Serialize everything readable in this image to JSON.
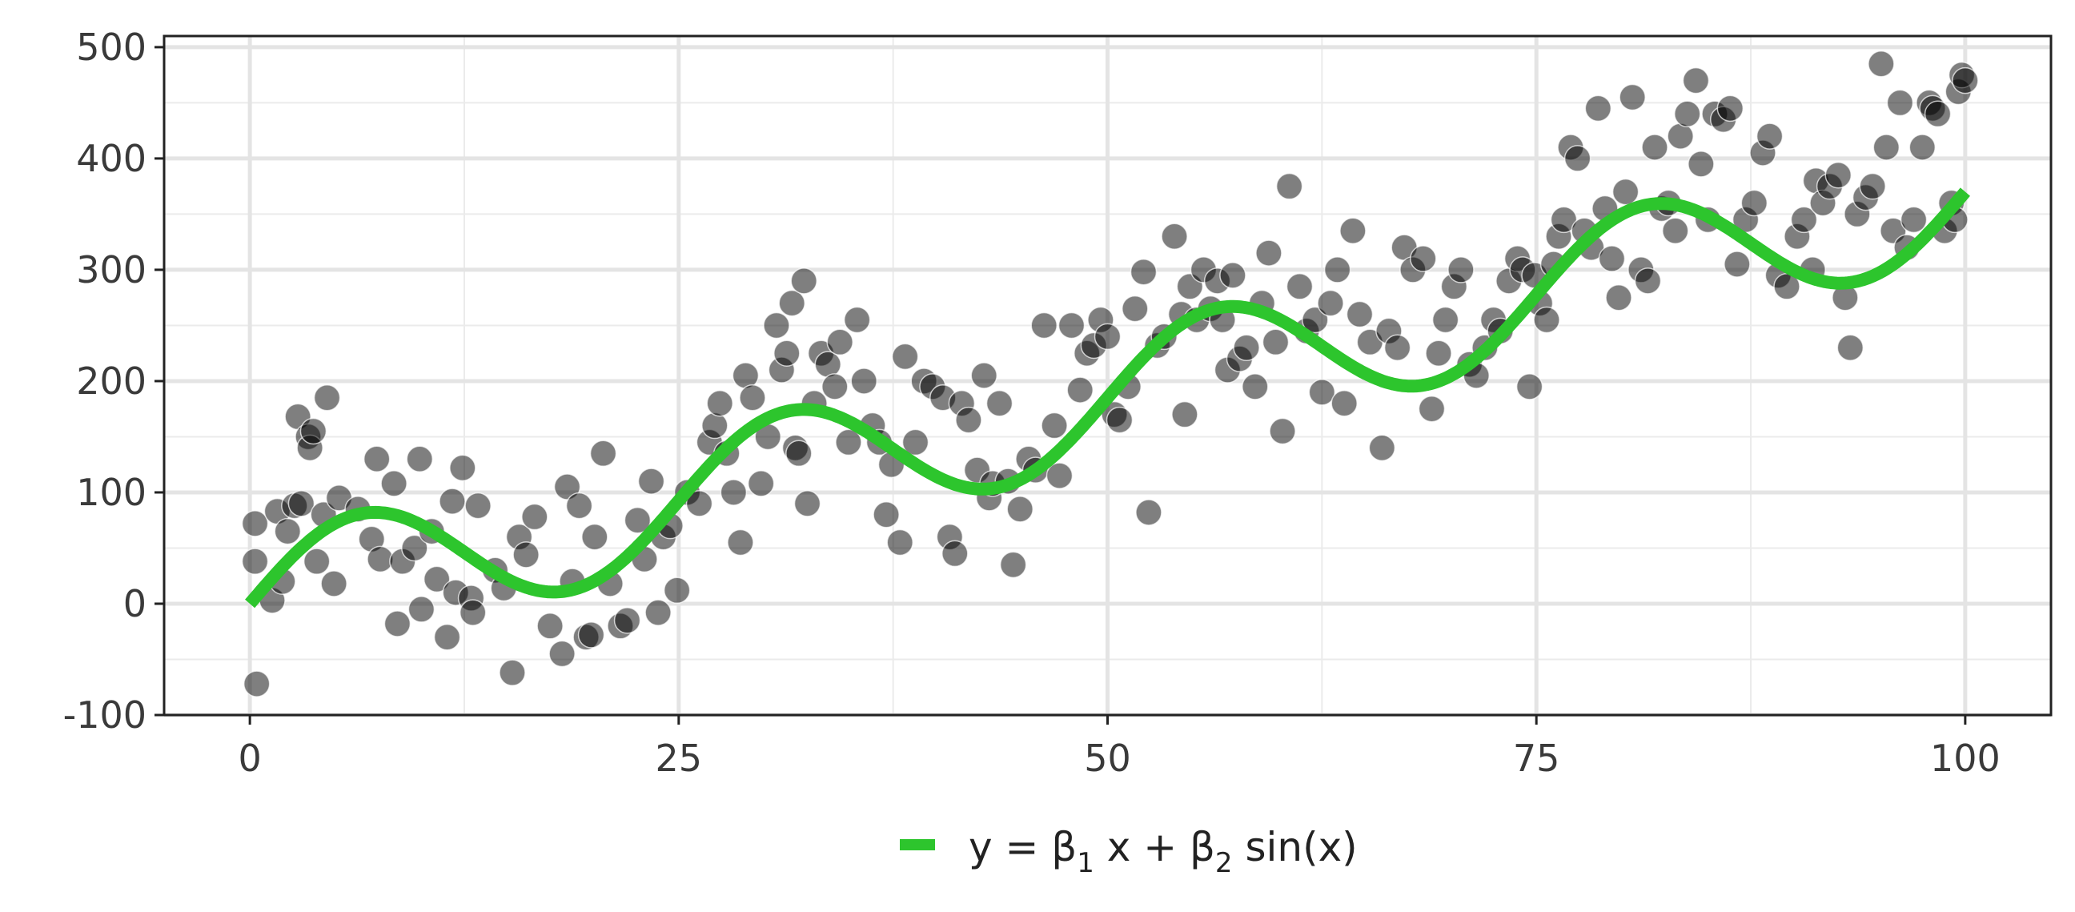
{
  "chart_data": {
    "type": "scatter",
    "title": "",
    "xlabel": "",
    "ylabel": "",
    "xlim": [
      -5,
      105
    ],
    "ylim": [
      -100,
      510
    ],
    "x_ticks": [
      0,
      25,
      50,
      75,
      100
    ],
    "y_ticks": [
      -100,
      0,
      100,
      200,
      300,
      400,
      500
    ],
    "x_tick_labels": [
      "0",
      "25",
      "50",
      "75",
      "100"
    ],
    "y_tick_labels": [
      "-100",
      "0",
      "100",
      "200",
      "300",
      "400",
      "500"
    ],
    "grid": true,
    "legend_position": "bottom",
    "series": [
      {
        "kind": "points",
        "color": "#000000",
        "opacity": 0.5,
        "points": [
          [
            0.3,
            38
          ],
          [
            0.3,
            72
          ],
          [
            0.4,
            -72
          ],
          [
            1.3,
            3
          ],
          [
            1.6,
            83
          ],
          [
            1.9,
            20
          ],
          [
            2.2,
            65
          ],
          [
            2.6,
            88
          ],
          [
            2.8,
            168
          ],
          [
            3.0,
            90
          ],
          [
            3.4,
            150
          ],
          [
            3.5,
            140
          ],
          [
            3.7,
            155
          ],
          [
            3.9,
            38
          ],
          [
            4.3,
            80
          ],
          [
            4.5,
            185
          ],
          [
            4.9,
            18
          ],
          [
            5.2,
            95
          ],
          [
            6.3,
            85
          ],
          [
            7.1,
            58
          ],
          [
            7.4,
            130
          ],
          [
            7.6,
            40
          ],
          [
            8.4,
            108
          ],
          [
            8.6,
            -18
          ],
          [
            8.9,
            38
          ],
          [
            9.6,
            50
          ],
          [
            9.9,
            130
          ],
          [
            10.0,
            -5
          ],
          [
            10.6,
            65
          ],
          [
            10.9,
            22
          ],
          [
            11.5,
            -30
          ],
          [
            11.8,
            92
          ],
          [
            12.0,
            10
          ],
          [
            12.4,
            122
          ],
          [
            12.9,
            5
          ],
          [
            13.0,
            -8
          ],
          [
            13.3,
            88
          ],
          [
            14.3,
            30
          ],
          [
            14.8,
            14
          ],
          [
            15.3,
            -62
          ],
          [
            15.7,
            60
          ],
          [
            16.1,
            44
          ],
          [
            16.6,
            78
          ],
          [
            17.5,
            -20
          ],
          [
            18.2,
            -45
          ],
          [
            18.5,
            105
          ],
          [
            18.8,
            20
          ],
          [
            19.2,
            88
          ],
          [
            19.6,
            -30
          ],
          [
            19.9,
            -28
          ],
          [
            20.1,
            60
          ],
          [
            20.6,
            135
          ],
          [
            21.0,
            18
          ],
          [
            21.6,
            -20
          ],
          [
            22.0,
            -15
          ],
          [
            22.6,
            75
          ],
          [
            23.0,
            40
          ],
          [
            23.4,
            110
          ],
          [
            23.8,
            -8
          ],
          [
            24.1,
            60
          ],
          [
            24.5,
            70
          ],
          [
            24.9,
            12
          ],
          [
            25.5,
            100
          ],
          [
            26.2,
            90
          ],
          [
            26.8,
            145
          ],
          [
            27.1,
            160
          ],
          [
            27.4,
            180
          ],
          [
            27.8,
            135
          ],
          [
            28.2,
            100
          ],
          [
            28.6,
            55
          ],
          [
            28.9,
            205
          ],
          [
            29.3,
            185
          ],
          [
            29.8,
            108
          ],
          [
            30.2,
            150
          ],
          [
            30.7,
            250
          ],
          [
            31.0,
            210
          ],
          [
            31.3,
            225
          ],
          [
            31.6,
            270
          ],
          [
            31.8,
            140
          ],
          [
            32.0,
            135
          ],
          [
            32.3,
            290
          ],
          [
            32.5,
            90
          ],
          [
            32.9,
            180
          ],
          [
            33.3,
            225
          ],
          [
            33.7,
            215
          ],
          [
            34.1,
            195
          ],
          [
            34.4,
            235
          ],
          [
            34.9,
            145
          ],
          [
            35.4,
            255
          ],
          [
            35.8,
            200
          ],
          [
            36.3,
            160
          ],
          [
            36.7,
            145
          ],
          [
            37.1,
            80
          ],
          [
            37.4,
            125
          ],
          [
            37.9,
            55
          ],
          [
            38.2,
            222
          ],
          [
            38.8,
            145
          ],
          [
            39.3,
            200
          ],
          [
            39.8,
            195
          ],
          [
            40.4,
            185
          ],
          [
            40.8,
            60
          ],
          [
            41.1,
            45
          ],
          [
            41.5,
            180
          ],
          [
            41.9,
            165
          ],
          [
            42.4,
            120
          ],
          [
            42.8,
            205
          ],
          [
            43.1,
            95
          ],
          [
            43.3,
            108
          ],
          [
            43.7,
            180
          ],
          [
            44.2,
            110
          ],
          [
            44.5,
            35
          ],
          [
            44.9,
            85
          ],
          [
            45.4,
            130
          ],
          [
            45.8,
            120
          ],
          [
            46.3,
            250
          ],
          [
            46.9,
            160
          ],
          [
            47.2,
            115
          ],
          [
            47.9,
            250
          ],
          [
            48.4,
            192
          ],
          [
            48.8,
            225
          ],
          [
            49.2,
            232
          ],
          [
            49.6,
            255
          ],
          [
            50.0,
            240
          ],
          [
            50.4,
            170
          ],
          [
            50.7,
            165
          ],
          [
            51.2,
            195
          ],
          [
            51.6,
            265
          ],
          [
            52.1,
            298
          ],
          [
            52.4,
            82
          ],
          [
            52.9,
            232
          ],
          [
            53.3,
            240
          ],
          [
            53.9,
            330
          ],
          [
            54.3,
            260
          ],
          [
            54.5,
            170
          ],
          [
            54.8,
            285
          ],
          [
            55.2,
            255
          ],
          [
            55.6,
            300
          ],
          [
            56.0,
            265
          ],
          [
            56.4,
            290
          ],
          [
            56.7,
            255
          ],
          [
            57.0,
            210
          ],
          [
            57.3,
            295
          ],
          [
            57.7,
            220
          ],
          [
            58.1,
            230
          ],
          [
            58.6,
            195
          ],
          [
            59.0,
            270
          ],
          [
            59.4,
            315
          ],
          [
            59.8,
            235
          ],
          [
            60.2,
            155
          ],
          [
            60.6,
            375
          ],
          [
            61.2,
            285
          ],
          [
            61.6,
            245
          ],
          [
            62.1,
            255
          ],
          [
            62.5,
            190
          ],
          [
            63.0,
            270
          ],
          [
            63.4,
            300
          ],
          [
            63.8,
            180
          ],
          [
            64.3,
            335
          ],
          [
            64.7,
            260
          ],
          [
            65.3,
            235
          ],
          [
            66.0,
            140
          ],
          [
            66.4,
            245
          ],
          [
            66.9,
            230
          ],
          [
            67.3,
            320
          ],
          [
            67.8,
            300
          ],
          [
            68.4,
            310
          ],
          [
            68.9,
            175
          ],
          [
            69.3,
            225
          ],
          [
            69.7,
            255
          ],
          [
            70.2,
            285
          ],
          [
            70.6,
            300
          ],
          [
            71.1,
            215
          ],
          [
            71.5,
            205
          ],
          [
            72.0,
            230
          ],
          [
            72.5,
            255
          ],
          [
            72.9,
            245
          ],
          [
            73.4,
            290
          ],
          [
            73.9,
            310
          ],
          [
            74.2,
            300
          ],
          [
            74.6,
            195
          ],
          [
            74.9,
            295
          ],
          [
            75.2,
            270
          ],
          [
            75.6,
            255
          ],
          [
            76.0,
            305
          ],
          [
            76.3,
            330
          ],
          [
            76.6,
            345
          ],
          [
            77.0,
            410
          ],
          [
            77.4,
            400
          ],
          [
            77.8,
            335
          ],
          [
            78.2,
            320
          ],
          [
            78.6,
            445
          ],
          [
            79.0,
            355
          ],
          [
            79.4,
            310
          ],
          [
            79.8,
            275
          ],
          [
            80.2,
            370
          ],
          [
            80.6,
            455
          ],
          [
            81.1,
            300
          ],
          [
            81.5,
            290
          ],
          [
            81.9,
            410
          ],
          [
            82.3,
            355
          ],
          [
            82.7,
            360
          ],
          [
            83.1,
            335
          ],
          [
            83.4,
            420
          ],
          [
            83.8,
            440
          ],
          [
            84.3,
            470
          ],
          [
            84.6,
            395
          ],
          [
            85.0,
            345
          ],
          [
            85.4,
            440
          ],
          [
            85.9,
            435
          ],
          [
            86.3,
            445
          ],
          [
            86.7,
            305
          ],
          [
            87.2,
            345
          ],
          [
            87.7,
            360
          ],
          [
            88.2,
            405
          ],
          [
            88.6,
            420
          ],
          [
            89.1,
            295
          ],
          [
            89.6,
            285
          ],
          [
            90.2,
            330
          ],
          [
            90.6,
            345
          ],
          [
            91.1,
            300
          ],
          [
            91.3,
            380
          ],
          [
            91.7,
            360
          ],
          [
            92.1,
            375
          ],
          [
            92.6,
            385
          ],
          [
            93.0,
            275
          ],
          [
            93.3,
            230
          ],
          [
            93.7,
            350
          ],
          [
            94.2,
            365
          ],
          [
            94.6,
            375
          ],
          [
            95.1,
            485
          ],
          [
            95.4,
            410
          ],
          [
            95.8,
            335
          ],
          [
            96.2,
            450
          ],
          [
            96.6,
            320
          ],
          [
            97.0,
            345
          ],
          [
            97.5,
            410
          ],
          [
            97.9,
            450
          ],
          [
            98.1,
            445
          ],
          [
            98.4,
            440
          ],
          [
            98.8,
            335
          ],
          [
            99.2,
            360
          ],
          [
            99.4,
            345
          ],
          [
            99.6,
            460
          ],
          [
            99.8,
            475
          ],
          [
            100.0,
            470
          ]
        ]
      },
      {
        "kind": "fit",
        "name": "y = β1 x + β2 sin(x)",
        "color": "#2dc52d",
        "beta1": 3.7,
        "beta2": 57,
        "period": 25,
        "x_range": [
          0,
          100
        ]
      }
    ]
  },
  "legend": {
    "symbol_color": "#2dc52d",
    "text": "y = β1 x + β2 sin(x)",
    "prefix": "y = β",
    "sub1": "1",
    "middle": " x + β",
    "sub2": "2",
    "suffix": " sin(x)"
  }
}
